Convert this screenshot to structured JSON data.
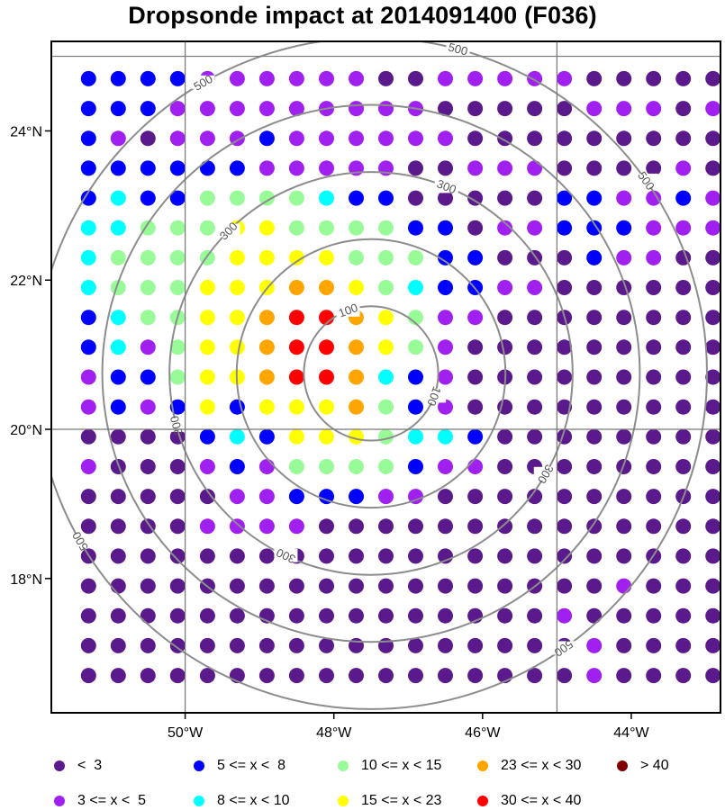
{
  "title": "Dropsonde impact at 2014091400 (F036)",
  "map": {
    "lon_range": [
      -51.8,
      -42.8
    ],
    "lat_range": [
      16.2,
      25.2
    ],
    "x_ticks": [
      {
        "value": -50,
        "label": "50°W"
      },
      {
        "value": -48,
        "label": "48°W"
      },
      {
        "value": -46,
        "label": "46°W"
      },
      {
        "value": -44,
        "label": "44°W"
      }
    ],
    "y_ticks": [
      {
        "value": 24,
        "label": "24°N"
      },
      {
        "value": 22,
        "label": "22°N"
      },
      {
        "value": 20,
        "label": "20°N"
      },
      {
        "value": 18,
        "label": "18°N"
      }
    ],
    "gridlines": {
      "lon": [
        -50,
        -45
      ],
      "lat": [
        25,
        20
      ]
    },
    "contours": {
      "center_lon": -47.5,
      "center_lat": 20.75,
      "levels": [
        100,
        200,
        300,
        400,
        500
      ],
      "labeled_levels": [
        "100",
        "300",
        "500"
      ]
    }
  },
  "legend": [
    {
      "label": "<  3",
      "color": "#5a1a8c"
    },
    {
      "label": "3 <= x <  5",
      "color": "#a020f0"
    },
    {
      "label": "5 <= x <  8",
      "color": "#0000ff"
    },
    {
      "label": "8 <= x < 10",
      "color": "#00ffff"
    },
    {
      "label": "10 <= x < 15",
      "color": "#98fb98"
    },
    {
      "label": "15 <= x < 23",
      "color": "#ffff00"
    },
    {
      "label": "23 <= x < 30",
      "color": "#ffa500"
    },
    {
      "label": "30 <= x < 40",
      "color": "#ff0000"
    },
    {
      "label": "> 40",
      "color": "#800000"
    }
  ],
  "grid": {
    "lons": [
      -51.3,
      -50.9,
      -50.5,
      -50.1,
      -49.7,
      -49.3,
      -48.9,
      -48.5,
      -48.1,
      -47.7,
      -47.3,
      -46.9,
      -46.5,
      -46.1,
      -45.7,
      -45.3,
      -44.9,
      -44.5,
      -44.1,
      -43.7,
      -43.3,
      -42.9
    ],
    "lats": [
      24.7,
      24.3,
      23.9,
      23.5,
      23.1,
      22.7,
      22.3,
      21.9,
      21.5,
      21.1,
      20.7,
      20.3,
      19.9,
      19.5,
      19.1,
      18.7,
      18.3,
      17.9,
      17.5,
      17.1,
      16.7
    ],
    "classes": [
      "2222111111001111100000",
      "2221111111110000011101",
      "2101112111111000000000",
      "2222221111100111000010",
      "2322444432200000221121",
      "3344455444422011222111",
      "3444455554442200021100",
      "3444555665432211000000",
      "2344556776541100000000",
      "2314556776541000000000",
      "1224556776321000000000",
      "1212525556421000000000",
      "0000232555433200000000",
      "1000121444421100000000",
      "0000011222110000000000",
      "0000111100000000000000",
      "0000000000000000000000",
      "0000000000000000001000",
      "0000000000000000100000",
      "0000000000000000010000",
      "0000000000000000010000"
    ]
  }
}
